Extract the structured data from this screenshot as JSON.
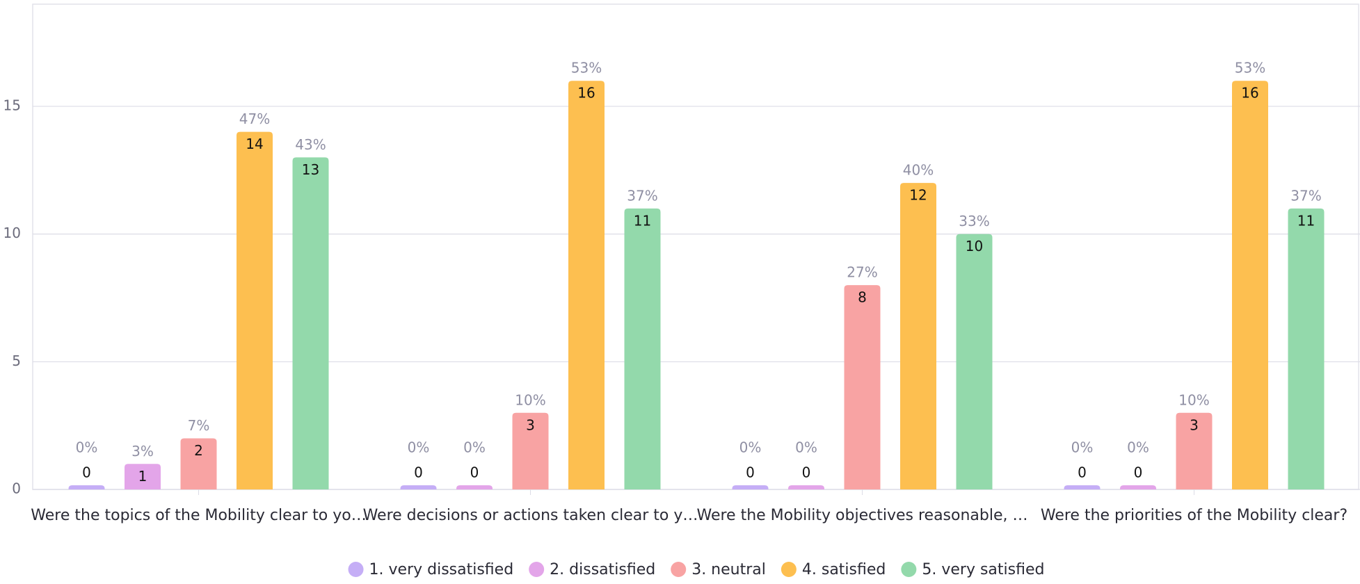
{
  "chart_data": {
    "type": "bar",
    "categories": [
      "Were the topics of the Mobility clear to yo…",
      "Were decisions or actions taken clear to y…",
      "Were the Mobility objectives reasonable, …",
      "Were the priorities of the Mobility clear?"
    ],
    "series": [
      {
        "name": "1. very dissatisfied",
        "color": "#c5aef6",
        "values": [
          0,
          0,
          0,
          0
        ],
        "percent_labels": [
          "0%",
          "0%",
          "0%",
          "0%"
        ]
      },
      {
        "name": "2. dissatisfied",
        "color": "#e3a5e9",
        "values": [
          1,
          0,
          0,
          0
        ],
        "percent_labels": [
          "3%",
          "0%",
          "0%",
          "0%"
        ]
      },
      {
        "name": "3. neutral",
        "color": "#f8a3a3",
        "values": [
          2,
          3,
          8,
          3
        ],
        "percent_labels": [
          "7%",
          "10%",
          "27%",
          "10%"
        ]
      },
      {
        "name": "4. satisfied",
        "color": "#fdbf50",
        "values": [
          14,
          16,
          12,
          16
        ],
        "percent_labels": [
          "47%",
          "53%",
          "40%",
          "53%"
        ]
      },
      {
        "name": "5. very satisfied",
        "color": "#93d9ab",
        "values": [
          13,
          11,
          10,
          11
        ],
        "percent_labels": [
          "43%",
          "37%",
          "33%",
          "37%"
        ]
      }
    ],
    "ylim": [
      0,
      19
    ],
    "yticks": [
      0,
      5,
      10,
      15
    ],
    "grid": true,
    "legend": "bottom"
  }
}
